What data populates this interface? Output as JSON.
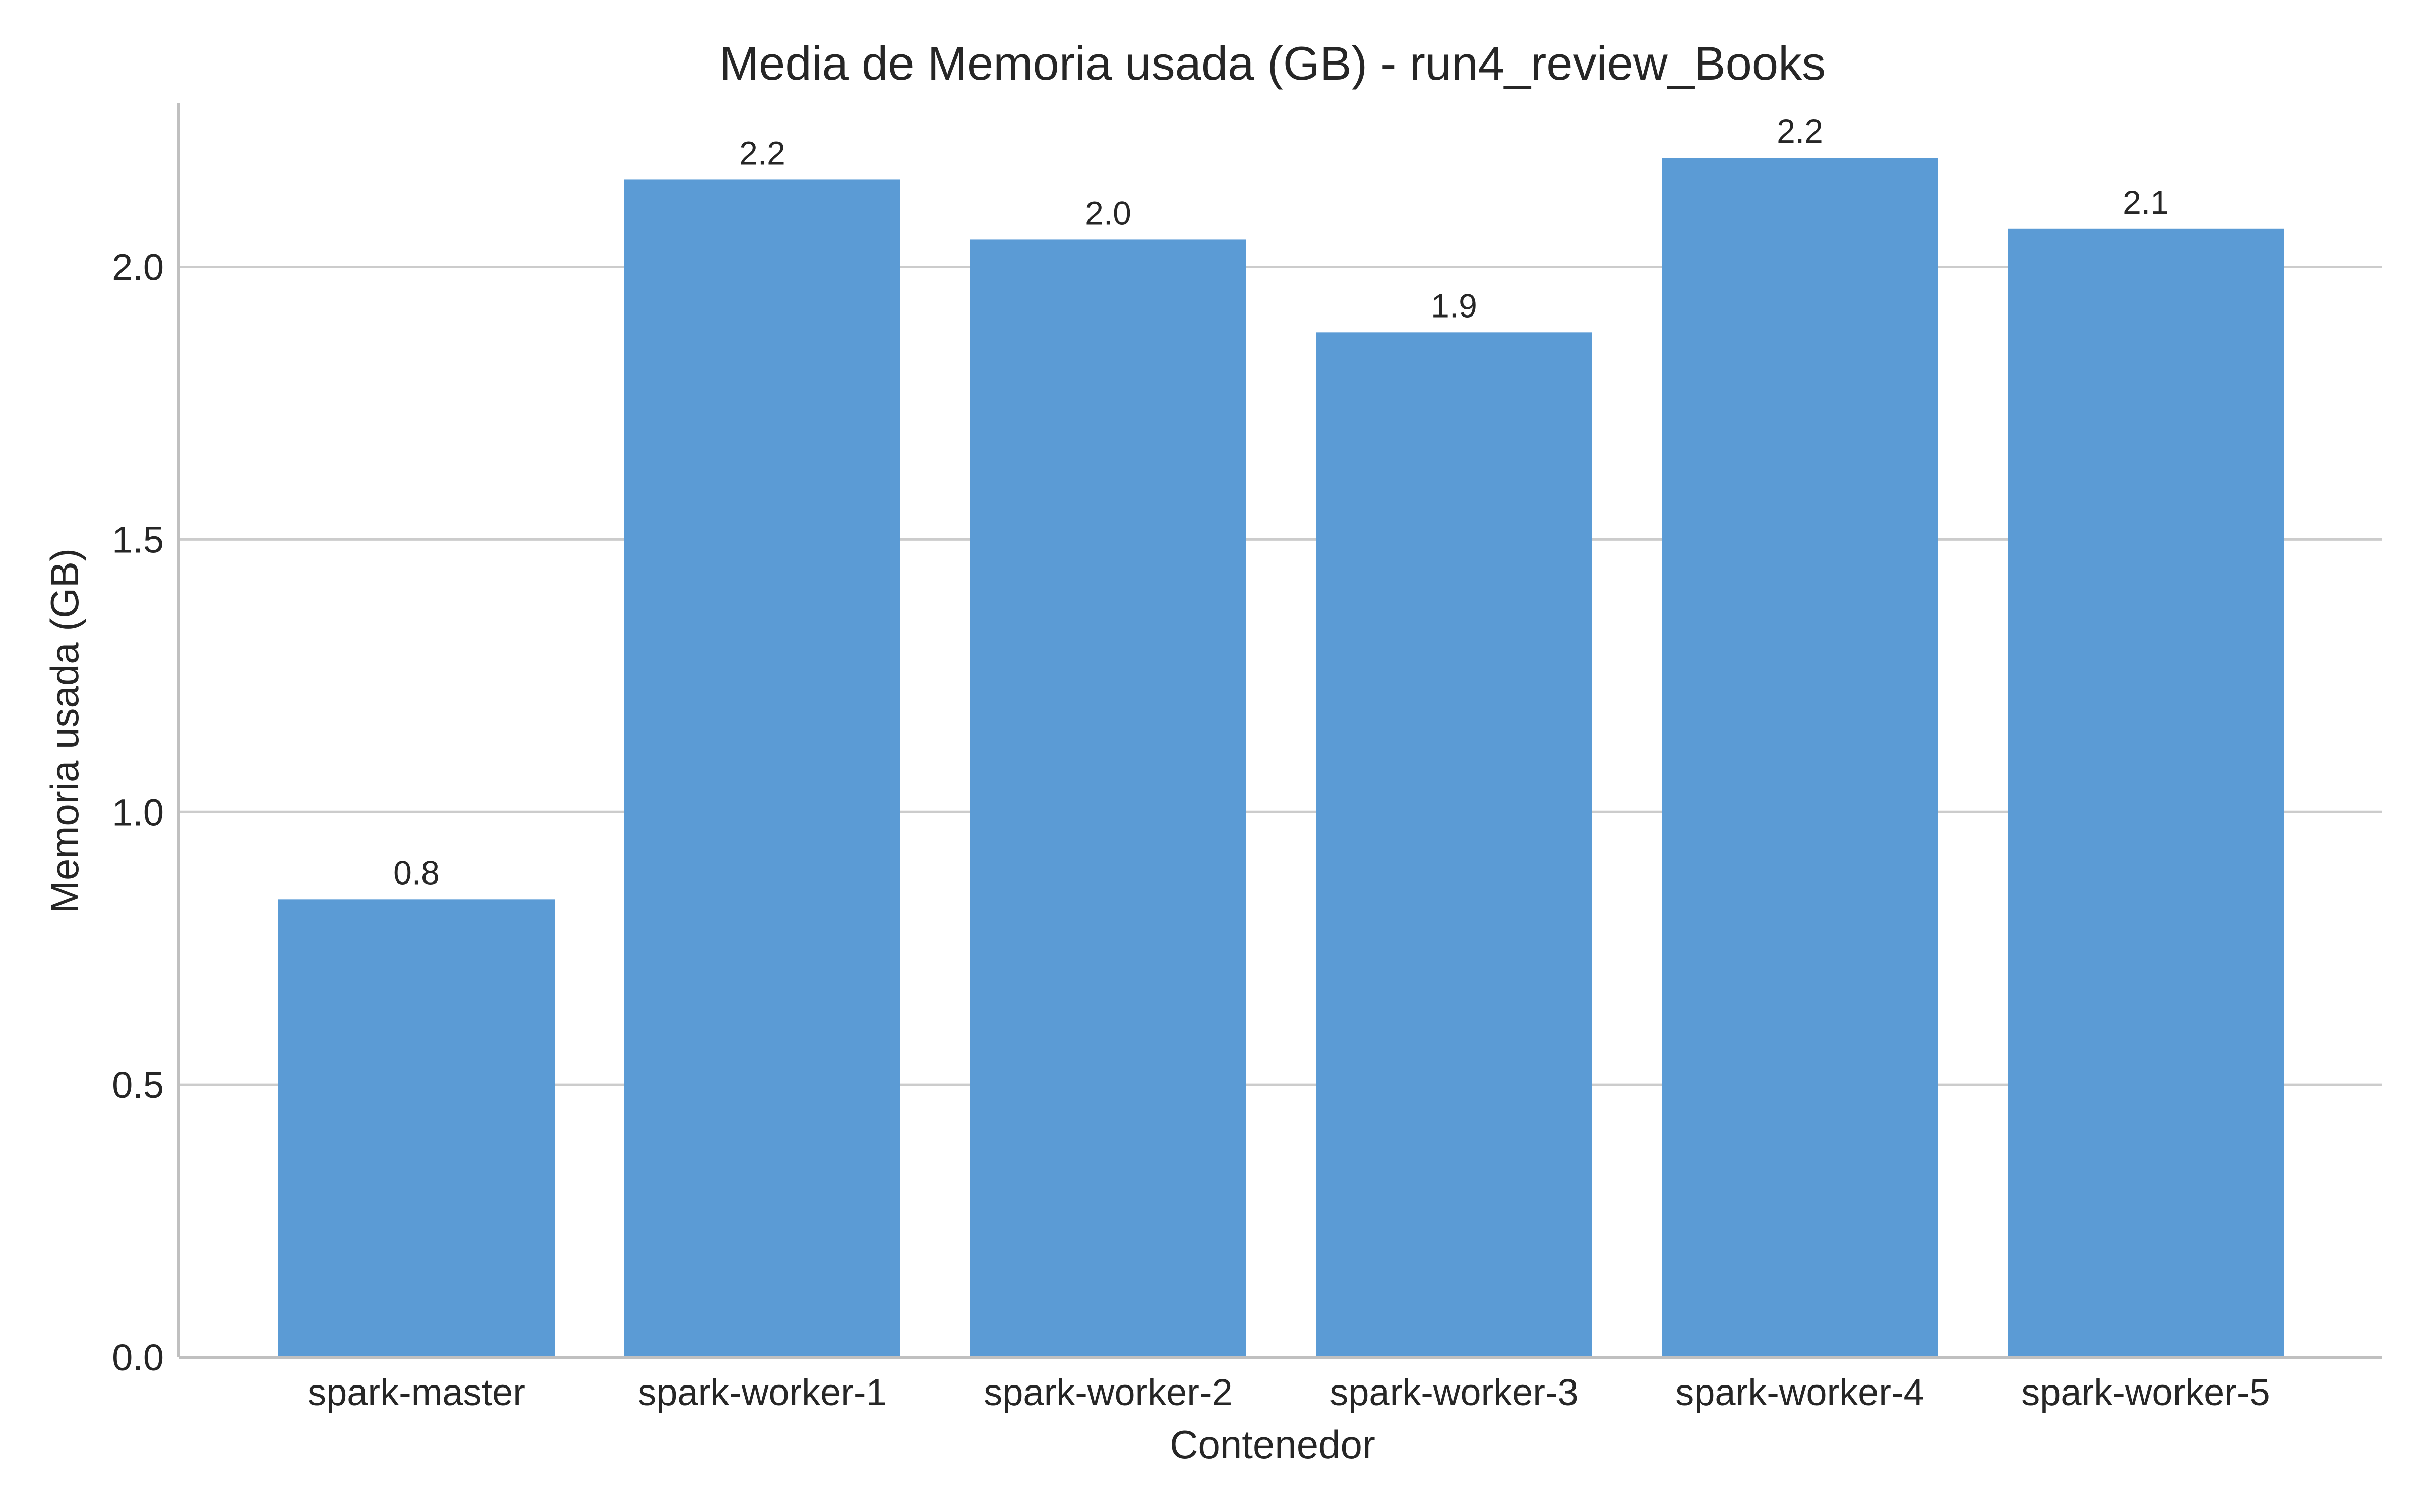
{
  "chart_data": {
    "type": "bar",
    "title": "Media de Memoria usada (GB) - run4_review_Books",
    "xlabel": "Contenedor",
    "ylabel": "Memoria usada (GB)",
    "categories": [
      "spark-master",
      "spark-worker-1",
      "spark-worker-2",
      "spark-worker-3",
      "spark-worker-4",
      "spark-worker-5"
    ],
    "values": [
      0.84,
      2.16,
      2.05,
      1.88,
      2.2,
      2.07
    ],
    "value_labels": [
      "0.8",
      "2.2",
      "2.0",
      "1.9",
      "2.2",
      "2.1"
    ],
    "ylim": [
      0,
      2.3
    ],
    "yticks": [
      0.0,
      0.5,
      1.0,
      1.5,
      2.0
    ],
    "ytick_labels": [
      "0.0",
      "0.5",
      "1.0",
      "1.5",
      "2.0"
    ],
    "grid": "horizontal",
    "colors": {
      "bar": "#5b9bd5",
      "grid": "#cccccc",
      "axis": "#c0c0c0",
      "text": "#262626"
    }
  }
}
